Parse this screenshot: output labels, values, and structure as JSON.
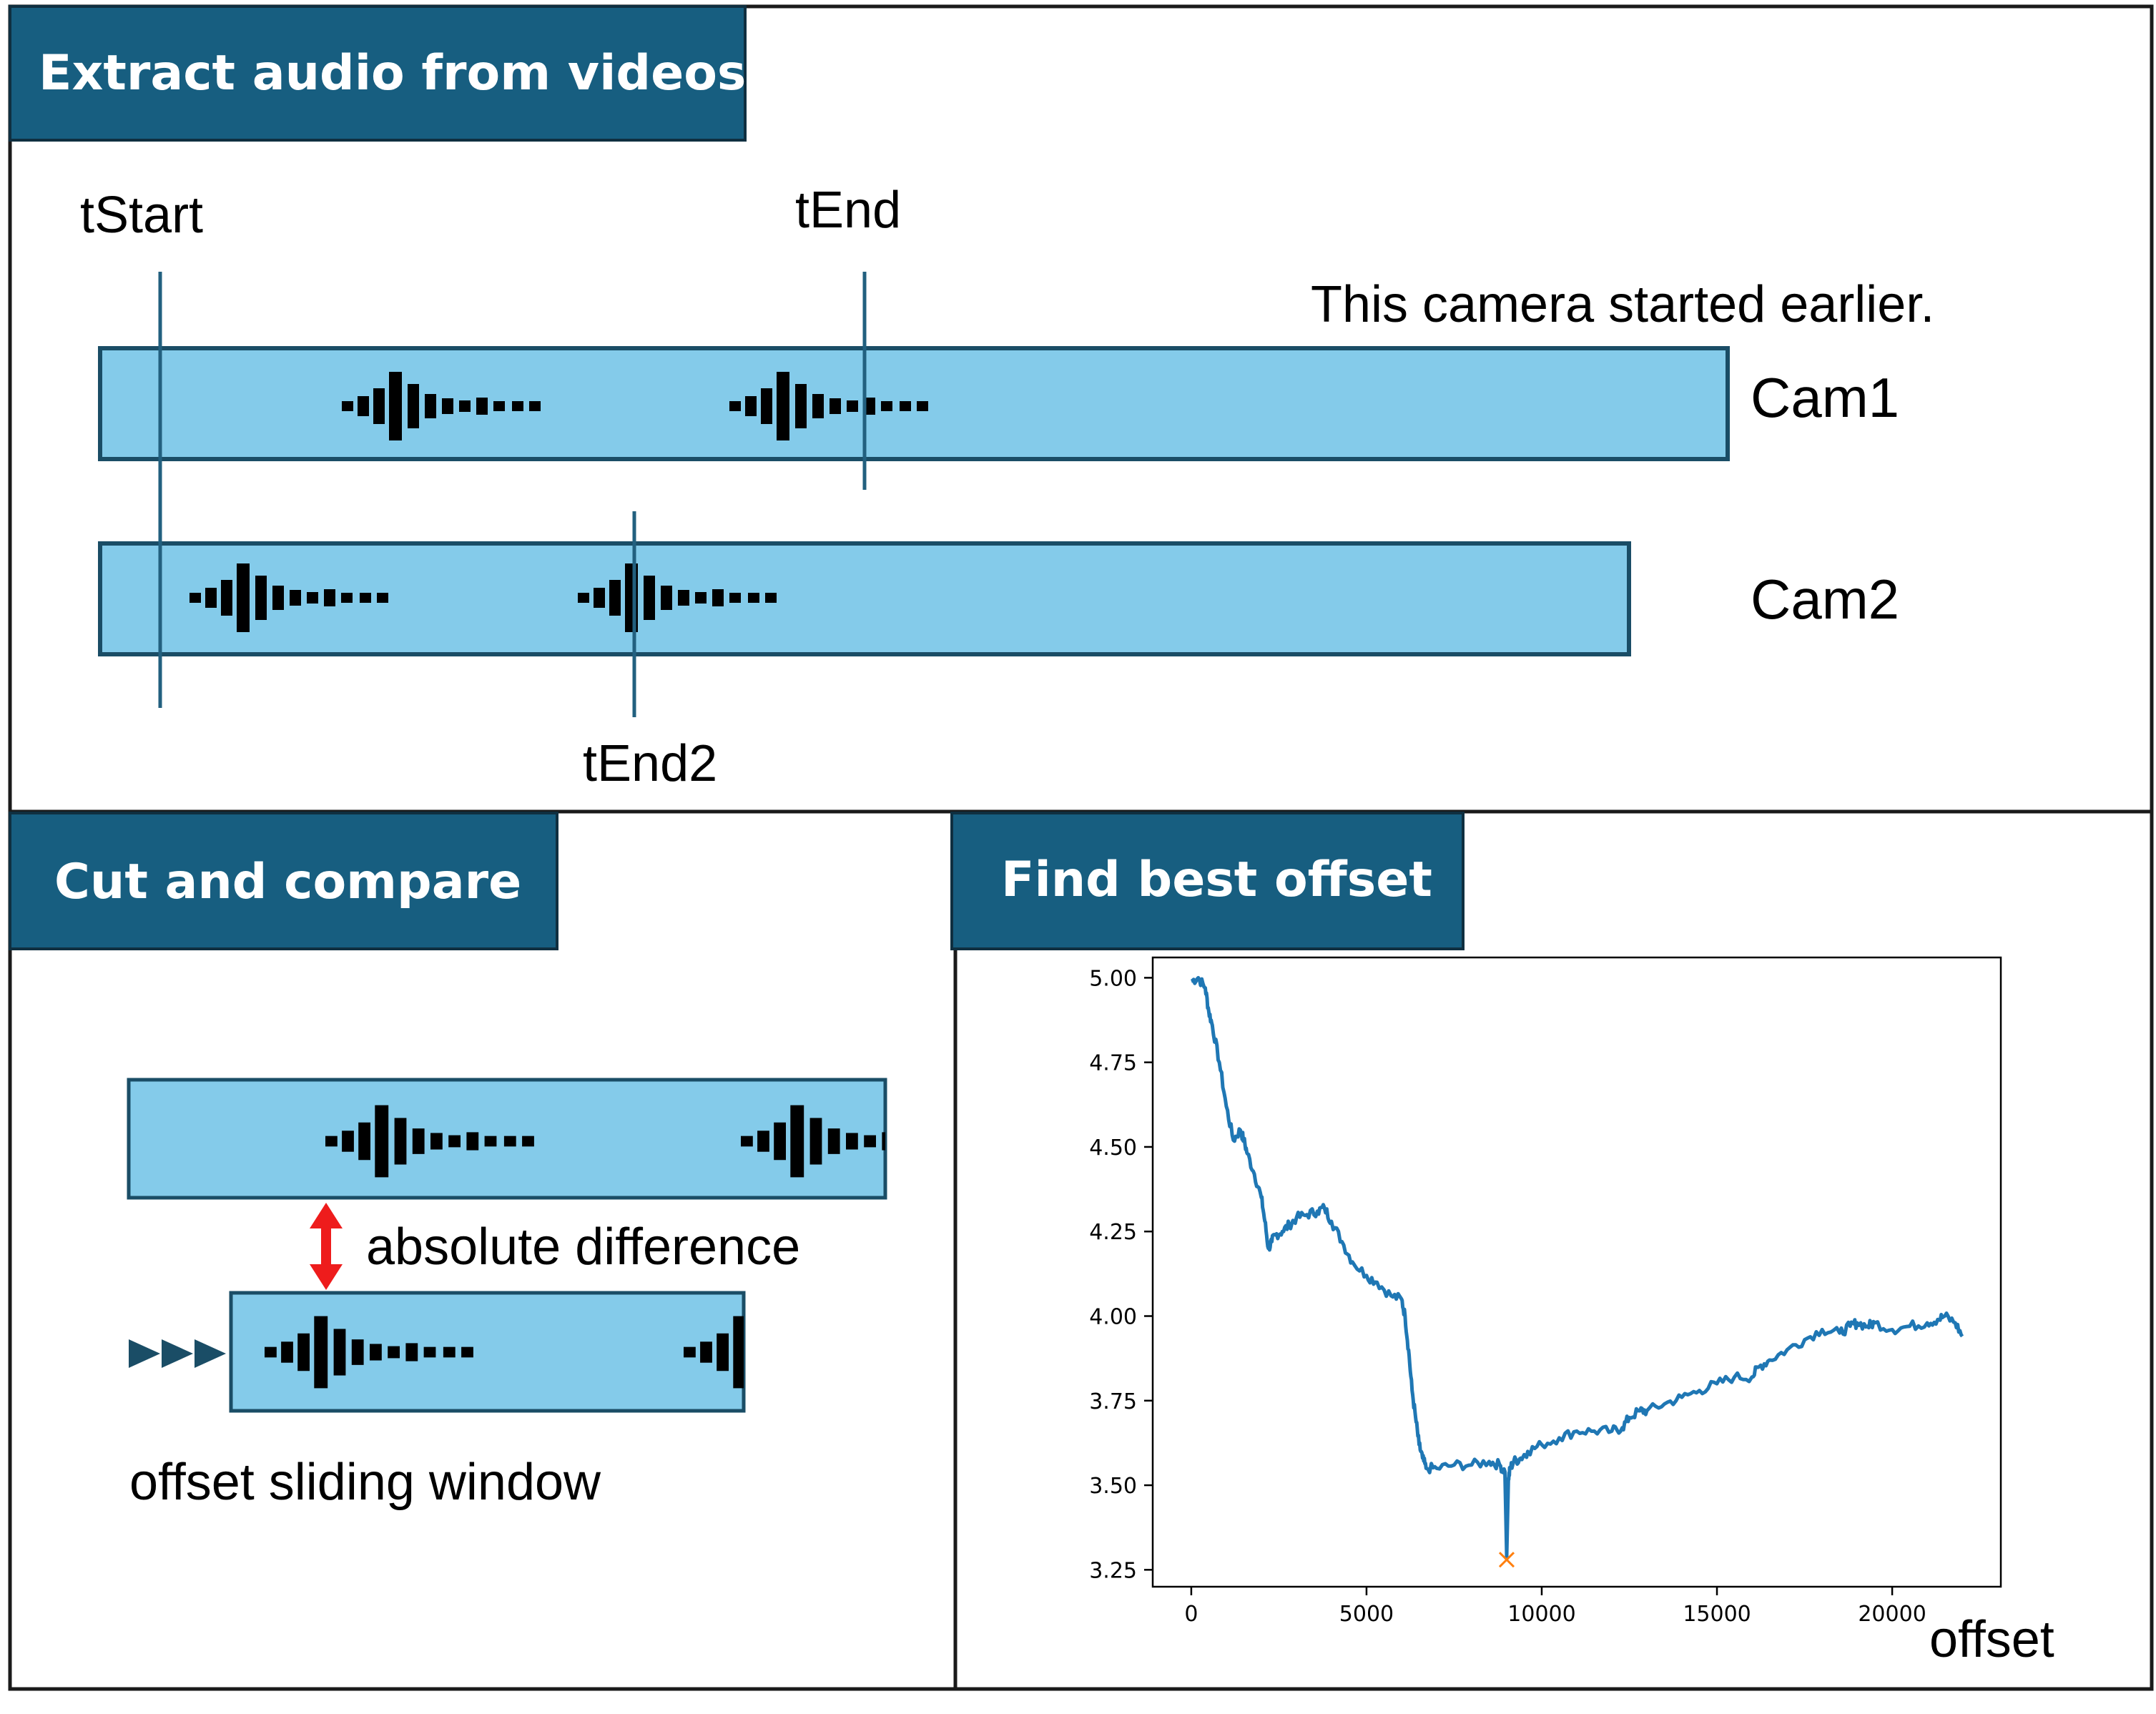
{
  "colors": {
    "header_bg": "#175e80",
    "track_fill": "#84cbea",
    "track_border": "#1a4d66",
    "marker_line": "#22607f",
    "arrow_red": "#ee1c1c",
    "plot_line": "#1f77b4",
    "min_marker": "#ff7f0e"
  },
  "section1": {
    "title": "Extract audio from videos",
    "t_start": "tStart",
    "t_end": "tEnd",
    "t_end2": "tEnd2",
    "note": "This camera started earlier.",
    "cam1": "Cam1",
    "cam2": "Cam2"
  },
  "section2": {
    "title": "Cut and compare",
    "abs_diff": "absolute difference",
    "sliding": "offset sliding window"
  },
  "section3": {
    "title": "Find best offset",
    "x_label": "offset"
  },
  "chart_data": {
    "type": "line",
    "title": "",
    "xlabel": "offset",
    "ylabel": "",
    "xlim": [
      -1100,
      23100
    ],
    "ylim": [
      3.2,
      5.06
    ],
    "x_ticks": [
      "0",
      "5000",
      "10000",
      "15000",
      "20000"
    ],
    "y_ticks": [
      "5.00",
      "4.75",
      "4.50",
      "4.25",
      "4.00",
      "3.75",
      "3.50",
      "3.25"
    ],
    "series": [
      {
        "x": [
          0,
          200,
          400,
          500,
          600,
          800,
          1000,
          1200,
          1400,
          1500,
          1600,
          1800,
          2000,
          2100,
          2200,
          2300,
          2400,
          2600,
          2800,
          3000,
          3300,
          3600,
          3800,
          4000,
          4300,
          4600,
          5000,
          5300,
          5700,
          6000,
          6100,
          6200,
          6300,
          6400,
          6500,
          6600,
          6700,
          7000,
          7500,
          8000,
          8500,
          8800,
          8950,
          9000,
          9050,
          9100,
          9200,
          9400,
          9600,
          10000,
          10500,
          11000,
          11500,
          12000,
          12300,
          12500,
          12800,
          13000,
          13500,
          14000,
          14500,
          15000,
          15500,
          16000,
          16200,
          16500,
          17000,
          17500,
          18000,
          18500,
          18800,
          19000,
          19300,
          19500,
          20000,
          20500,
          21000,
          21300,
          21500,
          21800,
          22000
        ],
        "y": [
          4.99,
          5.0,
          4.97,
          4.9,
          4.86,
          4.75,
          4.62,
          4.52,
          4.55,
          4.52,
          4.48,
          4.42,
          4.35,
          4.28,
          4.2,
          4.22,
          4.24,
          4.25,
          4.27,
          4.29,
          4.3,
          4.31,
          4.32,
          4.28,
          4.22,
          4.16,
          4.12,
          4.1,
          4.06,
          4.05,
          4.0,
          3.9,
          3.78,
          3.7,
          3.62,
          3.58,
          3.55,
          3.55,
          3.56,
          3.56,
          3.57,
          3.56,
          3.54,
          3.29,
          3.52,
          3.55,
          3.57,
          3.58,
          3.6,
          3.62,
          3.64,
          3.66,
          3.66,
          3.66,
          3.67,
          3.7,
          3.72,
          3.72,
          3.74,
          3.76,
          3.78,
          3.8,
          3.82,
          3.82,
          3.85,
          3.87,
          3.9,
          3.93,
          3.96,
          3.95,
          3.97,
          3.98,
          3.97,
          3.98,
          3.96,
          3.97,
          3.98,
          3.99,
          4.0,
          3.98,
          3.94
        ]
      }
    ],
    "min_marker": {
      "x": 9000,
      "y": 3.28
    }
  }
}
